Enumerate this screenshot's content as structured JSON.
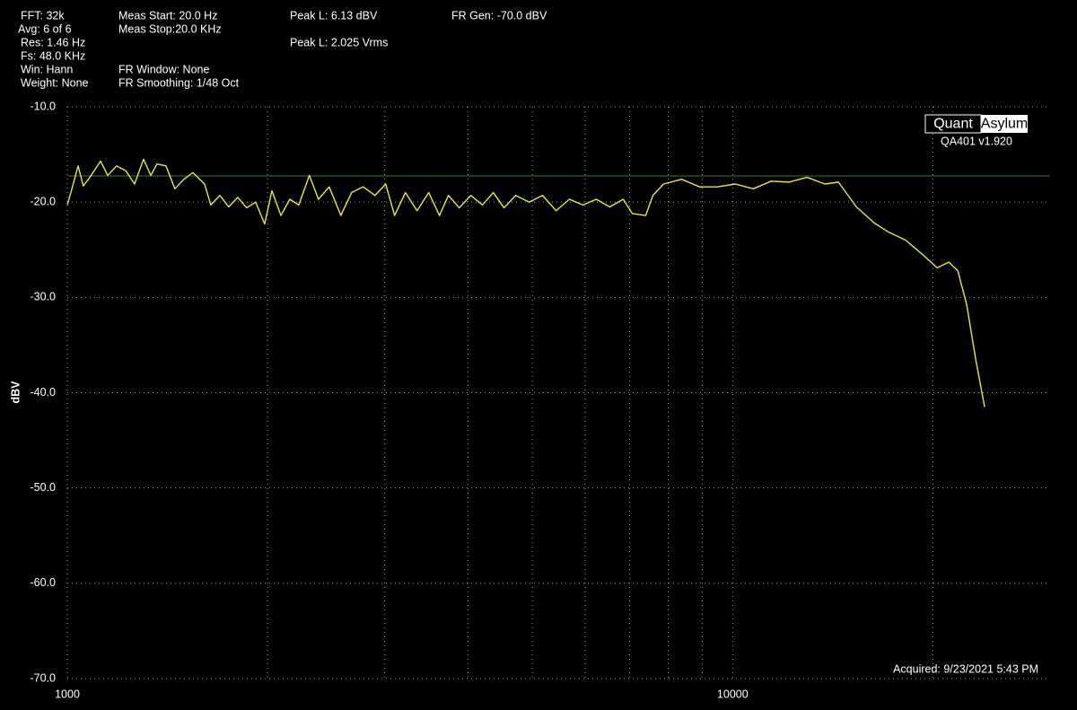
{
  "chart_data": {
    "type": "line",
    "info": [
      "FFT: 32k",
      "Avg: 6 of 6",
      "Res: 1.46 Hz",
      "Fs: 48.0 KHz",
      "Win: Hann",
      "Weight: None",
      "Meas Start: 20.0 Hz",
      "Meas Stop:20.0 KHz",
      "FR Window: None",
      "FR Smoothing: 1/48 Oct",
      "Peak L: 6.13 dBV",
      "Peak L: 2.025 Vrms",
      "FR Gen: -70.0  dBV"
    ],
    "logo": [
      "Quant",
      "Asylum"
    ],
    "version": "QA401 v1.920",
    "acquired": "Acquired: 9/23/2021  5:43 PM",
    "y_label": "dBV",
    "log_x": true,
    "xlim": [
      1000,
      30000
    ],
    "xticks": [
      1000,
      10000
    ],
    "x_minor_grid": [
      2000,
      3000,
      4000,
      5000,
      6000,
      7000,
      8000,
      9000,
      20000
    ],
    "ylim": [
      -70,
      -10
    ],
    "yticks": [
      {
        "value": -10,
        "label": "-10.0"
      },
      {
        "value": -20,
        "label": "-20.0"
      },
      {
        "value": -30,
        "label": "-30.0"
      },
      {
        "value": -40,
        "label": "-40.0"
      },
      {
        "value": -50,
        "label": "-50.0"
      },
      {
        "value": -60,
        "label": "-60.0"
      },
      {
        "value": -70,
        "label": "-70.0"
      }
    ],
    "grid": true,
    "ref_line": {
      "value": -17.25,
      "color": "#2f7a2f"
    },
    "x": [
      1000,
      1016,
      1038,
      1057,
      1081,
      1122,
      1150,
      1186,
      1224,
      1262,
      1302,
      1335,
      1364,
      1407,
      1451,
      1497,
      1544,
      1608,
      1643,
      1695,
      1748,
      1804,
      1860,
      1919,
      1980,
      2030,
      2094,
      2160,
      2228,
      2311,
      2385,
      2475,
      2577,
      2675,
      2784,
      2900,
      3010,
      3104,
      3222,
      3355,
      3493,
      3625,
      3740,
      3882,
      4042,
      4207,
      4368,
      4533,
      4720,
      4944,
      5179,
      5428,
      5685,
      5955,
      6239,
      6537,
      6848,
      7066,
      7401,
      7588,
      7875,
      8381,
      8917,
      9486,
      10093,
      10740,
      11428,
      12160,
      12939,
      13765,
      14421,
      15346,
      16331,
      17112,
      18203,
      19370,
      20295,
      21129,
      21799,
      22486,
      23192,
      23919
    ],
    "series": [
      {
        "color": "#e8e83a",
        "values": [
          -20.3,
          -18.6,
          -16.2,
          -18.3,
          -17.4,
          -15.7,
          -17.2,
          -16.2,
          -16.7,
          -18.1,
          -15.5,
          -17.2,
          -16.0,
          -16.2,
          -18.6,
          -17.6,
          -16.9,
          -18.1,
          -20.3,
          -19.3,
          -20.5,
          -19.5,
          -20.6,
          -20.0,
          -22.3,
          -18.8,
          -21.4,
          -19.7,
          -20.3,
          -17.2,
          -19.7,
          -18.4,
          -21.4,
          -19.0,
          -18.4,
          -19.3,
          -18.1,
          -21.4,
          -19.0,
          -20.9,
          -19.0,
          -21.4,
          -19.3,
          -20.6,
          -19.3,
          -20.3,
          -19.0,
          -20.6,
          -19.3,
          -20.0,
          -19.3,
          -20.9,
          -19.7,
          -20.3,
          -19.7,
          -20.5,
          -19.7,
          -21.2,
          -21.4,
          -19.3,
          -18.1,
          -17.6,
          -18.4,
          -18.4,
          -18.1,
          -18.6,
          -17.8,
          -17.9,
          -17.4,
          -18.1,
          -17.9,
          -20.5,
          -22.2,
          -23.1,
          -24.0,
          -25.6,
          -26.9,
          -26.3,
          -27.2,
          -30.8,
          -36.5,
          -41.5
        ]
      }
    ]
  }
}
